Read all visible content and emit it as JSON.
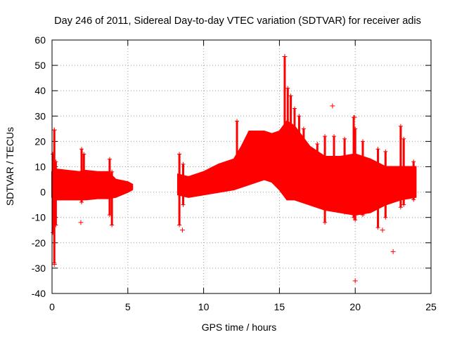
{
  "chart_data": {
    "type": "scatter",
    "title": "Day 246 of 2011, Sidereal Day-to-day VTEC variation (SDTVAR) for receiver adis",
    "xlabel": "GPS time / hours",
    "ylabel": "SDTVAR / TECUs",
    "xlim": [
      0,
      25
    ],
    "ylim": [
      -40,
      60
    ],
    "xticks": [
      0,
      5,
      10,
      15,
      20,
      25
    ],
    "yticks": [
      -40,
      -30,
      -20,
      -10,
      0,
      10,
      20,
      30,
      40,
      50,
      60
    ],
    "grid": true,
    "marker": "+",
    "color": "#ff0000",
    "band_segments": [
      {
        "x": [
          0.0,
          0.3,
          1.0,
          1.8,
          2.2,
          3.0,
          3.7,
          4.2,
          5.0,
          5.3
        ],
        "upper": [
          8,
          9,
          8.5,
          8,
          8.5,
          8,
          8,
          5,
          4,
          3
        ],
        "lower": [
          -2,
          -3,
          -3,
          -3,
          -3,
          -2.5,
          -2.5,
          -2,
          0,
          1
        ]
      },
      {
        "x": [
          8.3,
          9,
          10,
          11,
          12,
          12.5,
          13,
          14,
          14.5,
          15,
          15.5,
          16,
          17,
          18,
          19,
          20,
          21,
          22,
          23,
          24
        ],
        "upper": [
          7,
          6,
          8,
          11,
          13,
          18,
          24,
          24,
          23,
          24,
          28,
          26,
          18,
          14,
          14,
          15,
          13,
          10,
          10,
          10
        ],
        "lower": [
          -1,
          -2,
          -1,
          0,
          1,
          2,
          3,
          5,
          4,
          1,
          -3,
          -3,
          -5,
          -7,
          -8,
          -9,
          -8,
          -5,
          -3,
          -2
        ]
      }
    ],
    "spikes": [
      {
        "x": 0.05,
        "lo": -16,
        "hi": 15
      },
      {
        "x": 0.15,
        "lo": -28,
        "hi": 24.5
      },
      {
        "x": 0.25,
        "lo": -13,
        "hi": 12
      },
      {
        "x": 1.95,
        "lo": -4,
        "hi": 17
      },
      {
        "x": 2.1,
        "lo": -2,
        "hi": 15
      },
      {
        "x": 3.8,
        "lo": -9,
        "hi": 13
      },
      {
        "x": 3.95,
        "lo": -13,
        "hi": 8
      },
      {
        "x": 8.4,
        "lo": -13,
        "hi": 15
      },
      {
        "x": 8.65,
        "lo": -5,
        "hi": 11
      },
      {
        "x": 12.2,
        "lo": 4,
        "hi": 28
      },
      {
        "x": 15.35,
        "lo": 5,
        "hi": 53.5
      },
      {
        "x": 15.55,
        "lo": 8,
        "hi": 41
      },
      {
        "x": 15.75,
        "lo": 10,
        "hi": 38
      },
      {
        "x": 16.0,
        "lo": 5,
        "hi": 33
      },
      {
        "x": 16.3,
        "lo": 2,
        "hi": 30
      },
      {
        "x": 16.6,
        "lo": 0,
        "hi": 25
      },
      {
        "x": 17.5,
        "lo": -4,
        "hi": 19
      },
      {
        "x": 18.0,
        "lo": -12,
        "hi": 22
      },
      {
        "x": 18.6,
        "lo": -6,
        "hi": 22
      },
      {
        "x": 19.3,
        "lo": -8,
        "hi": 21
      },
      {
        "x": 19.9,
        "lo": -10,
        "hi": 29.5
      },
      {
        "x": 20.0,
        "lo": -11,
        "hi": 25
      },
      {
        "x": 20.5,
        "lo": -9,
        "hi": 20
      },
      {
        "x": 21.5,
        "lo": -14,
        "hi": 17
      },
      {
        "x": 22.0,
        "lo": -10,
        "hi": 16
      },
      {
        "x": 23.0,
        "lo": -6,
        "hi": 26
      },
      {
        "x": 23.2,
        "lo": -5,
        "hi": 21
      },
      {
        "x": 23.85,
        "lo": -3,
        "hi": 12
      }
    ],
    "outliers": [
      {
        "x": 0.15,
        "y": 24.5
      },
      {
        "x": 0.15,
        "y": -28.5
      },
      {
        "x": 1.9,
        "y": -12
      },
      {
        "x": 8.6,
        "y": -15
      },
      {
        "x": 18.5,
        "y": 34
      },
      {
        "x": 19.95,
        "y": 29.5
      },
      {
        "x": 20.0,
        "y": -35
      },
      {
        "x": 22.5,
        "y": -23.5
      },
      {
        "x": 21.8,
        "y": -15
      },
      {
        "x": 15.35,
        "y": 53.5
      }
    ]
  }
}
